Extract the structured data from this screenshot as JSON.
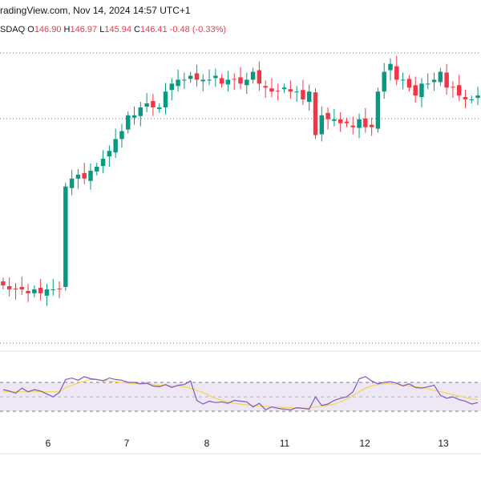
{
  "header": {
    "source_line": "radingView.com, Nov 14, 2024 14:57 UTC+1",
    "exchange": "SDAQ",
    "o_label": "O",
    "o_value": "146.90",
    "h_label": "H",
    "h_value": "146.97",
    "l_label": "L",
    "l_value": "145.94",
    "c_label": "C",
    "c_value": "146.41",
    "change": "-0.48 (-0.33%)"
  },
  "colors": {
    "up": "#089981",
    "down": "#f23645",
    "rsi_line": "#7e57c2",
    "rsi_ma": "#f7d64a",
    "rsi_band": "#ede7f6"
  },
  "chart_data": [
    {
      "type": "candlestick",
      "x_ticks": [
        "6",
        "7",
        "8",
        "11",
        "12",
        "13"
      ],
      "grid": false,
      "reference_lines": [
        "dotted-high",
        "dotted-last"
      ],
      "series": [
        {
          "values_close": [
            146.35,
            146.3,
            146.3,
            146.3,
            146.25,
            146.3,
            146.25,
            146.3,
            146.3,
            146.3,
            147.6,
            147.7,
            147.75,
            147.7,
            147.8,
            147.85,
            147.95,
            148.05,
            148.2,
            148.3,
            148.5,
            148.5,
            148.6,
            148.65,
            148.6,
            148.6,
            148.8,
            148.9,
            148.95,
            148.95,
            149.0,
            148.95,
            148.95,
            148.95,
            149.0,
            148.9,
            148.95,
            148.95,
            148.9,
            148.95,
            149.05,
            148.9,
            148.85,
            148.8,
            148.8,
            148.85,
            148.8,
            148.8,
            148.7,
            148.8,
            148.25,
            148.5,
            148.45,
            148.45,
            148.4,
            148.4,
            148.35,
            148.45,
            148.35,
            148.35,
            148.8,
            149.05,
            149.15,
            148.95,
            148.95,
            148.85,
            148.75,
            148.9,
            148.9,
            148.95,
            149.05,
            148.85,
            148.85,
            148.75,
            148.7,
            148.7,
            148.75
          ]
        }
      ]
    },
    {
      "type": "line",
      "name": "RSI",
      "ylim": [
        0,
        100
      ],
      "band": [
        30,
        70
      ],
      "series": [
        {
          "values": [
            60,
            58,
            55,
            62,
            57,
            60,
            58,
            54,
            50,
            56,
            74,
            76,
            73,
            78,
            75,
            74,
            72,
            76,
            74,
            73,
            70,
            70,
            68,
            69,
            65,
            64,
            67,
            63,
            66,
            67,
            72,
            45,
            40,
            44,
            42,
            43,
            41,
            45,
            44,
            43,
            36,
            41,
            32,
            36,
            34,
            33,
            32,
            35,
            34,
            33,
            50,
            38,
            40,
            45,
            48,
            50,
            57,
            75,
            78,
            72,
            68,
            70,
            71,
            69,
            65,
            68,
            63,
            62,
            64,
            66,
            52,
            48,
            50,
            46,
            44,
            40,
            42
          ]
        },
        {
          "values": [
            57,
            57,
            57,
            57,
            57,
            57,
            57,
            57,
            57,
            57,
            63,
            66,
            69,
            72,
            74,
            74,
            73,
            72,
            71,
            70,
            69,
            68,
            68,
            68,
            67,
            66,
            66,
            65,
            65,
            64,
            62,
            59,
            56,
            52,
            48,
            45,
            43,
            41,
            40,
            39,
            38,
            37,
            37,
            36,
            36,
            35,
            35,
            34,
            34,
            35,
            36,
            37,
            38,
            40,
            43,
            47,
            52,
            57,
            62,
            65,
            67,
            68,
            68,
            67,
            66,
            65,
            64,
            63,
            61,
            59,
            57,
            55,
            53,
            51,
            49,
            47,
            46
          ]
        }
      ]
    }
  ]
}
